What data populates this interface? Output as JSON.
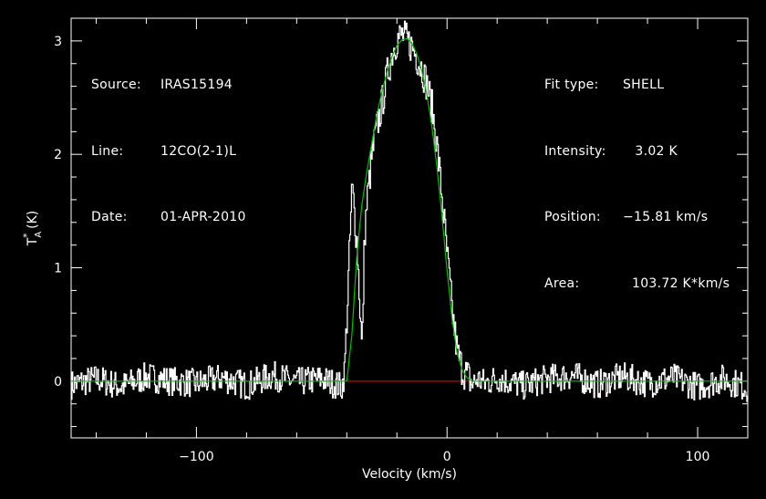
{
  "header_left": {
    "source_label": "Source:",
    "source_value": "IRAS15194",
    "line_label": "Line:",
    "line_value": "12CO(2-1)L",
    "date_label": "Date:",
    "date_value": "01-APR-2010"
  },
  "header_right": {
    "fit_label": "Fit type:",
    "fit_value": "SHELL",
    "intensity_label": "Intensity:",
    "intensity_value": "3.02 K",
    "position_label": "Position:",
    "position_value": "−15.81 km/s",
    "area_label": "Area:",
    "area_value": "103.72 K*km/s"
  },
  "chart_data": {
    "type": "line",
    "xlabel": "Velocity (km/s)",
    "ylabel": "T_A^* (K)",
    "xlim": [
      -150,
      120
    ],
    "ylim": [
      -0.5,
      3.2
    ],
    "xticks": [
      -100,
      0,
      100
    ],
    "xtick_labels": [
      "−100",
      "0",
      "100"
    ],
    "yticks": [
      0,
      1,
      2,
      3
    ],
    "ytick_labels": [
      "0",
      "1",
      "2",
      "3"
    ],
    "grid": false,
    "colors": {
      "spectrum": "#ffffff",
      "fit": "#00c000",
      "baseline": "#ff0000",
      "background": "#000000"
    },
    "series": [
      {
        "role": "spectrum",
        "x": [
          -150,
          -140,
          -130,
          -120,
          -110,
          -100,
          -90,
          -80,
          -70,
          -60,
          -50,
          -42,
          -41,
          -40,
          -38,
          -36,
          -34,
          -33,
          -32,
          -30,
          -28,
          -26,
          -24,
          -22,
          -20,
          -18,
          -16,
          -14,
          -12,
          -10,
          -8,
          -6,
          -4,
          -2,
          0,
          2,
          4,
          6,
          8,
          10,
          12,
          15,
          20,
          30,
          40,
          50,
          60,
          70,
          80,
          90,
          100,
          110,
          120
        ],
        "y": [
          -0.03,
          0.02,
          -0.05,
          0.04,
          0.0,
          -0.02,
          0.03,
          -0.04,
          0.05,
          -0.01,
          0.02,
          -0.05,
          0.1,
          0.6,
          1.72,
          1.2,
          0.25,
          1.3,
          1.6,
          2.0,
          2.25,
          2.45,
          2.7,
          2.9,
          3.02,
          3.05,
          3.0,
          2.95,
          2.85,
          2.75,
          2.6,
          2.4,
          2.05,
          1.6,
          1.1,
          0.6,
          0.25,
          0.1,
          0.05,
          -0.03,
          0.02,
          -0.02,
          0.03,
          -0.04,
          0.02,
          0.05,
          -0.03,
          0.04,
          -0.02,
          0.03,
          -0.05,
          0.02,
          -0.06
        ]
      },
      {
        "role": "fit",
        "x": [
          -150,
          -40,
          -38,
          -36,
          -34,
          -32,
          -30,
          -28,
          -26,
          -24,
          -22,
          -20,
          -18,
          -16,
          -14,
          -12,
          -10,
          -8,
          -6,
          -4,
          -2,
          0,
          2,
          4,
          6,
          8,
          10,
          120
        ],
        "y": [
          0,
          0,
          0.4,
          1.1,
          1.55,
          1.85,
          2.1,
          2.35,
          2.55,
          2.72,
          2.86,
          2.96,
          3.01,
          3.02,
          2.98,
          2.88,
          2.73,
          2.52,
          2.24,
          1.88,
          1.45,
          0.98,
          0.55,
          0.25,
          0.1,
          0.03,
          0,
          0
        ]
      },
      {
        "role": "baseline",
        "x": [
          -40,
          10
        ],
        "y": [
          0,
          0
        ]
      }
    ]
  }
}
